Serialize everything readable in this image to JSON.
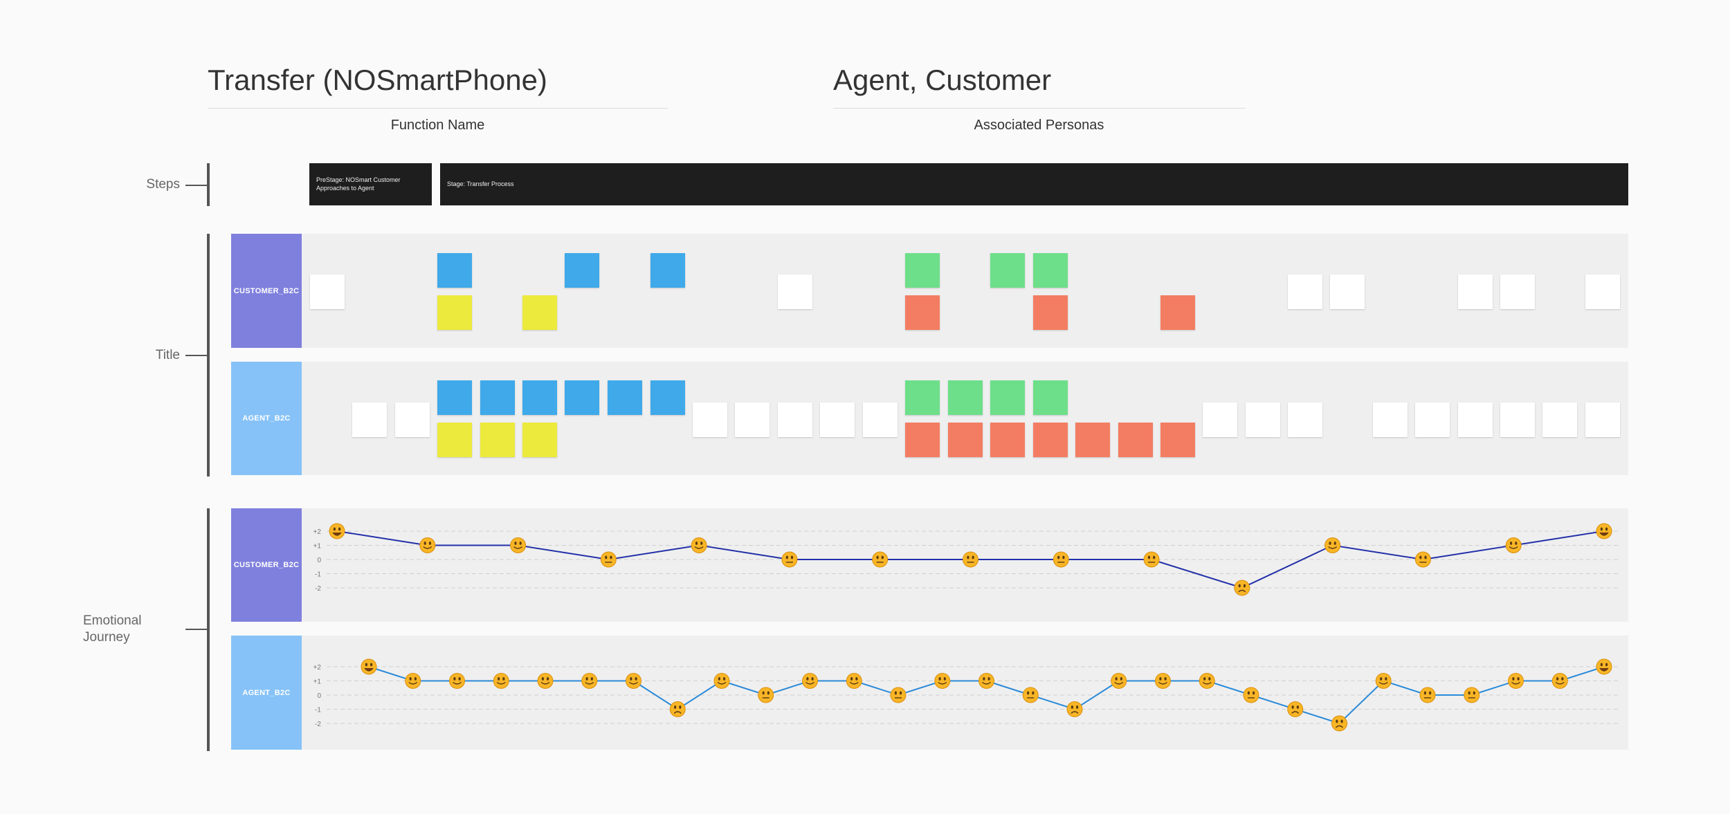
{
  "header": {
    "function_title": "Transfer (NOSmartPhone)",
    "function_label": "Function Name",
    "persona_title": "Agent, Customer",
    "persona_label": "Associated Personas"
  },
  "row_labels": {
    "steps": "Steps",
    "title": "Title",
    "emotional": "Emotional Journey"
  },
  "stages": [
    {
      "label": "PreStage: NOSmart Customer Approaches to Agent"
    },
    {
      "label": "Stage: Transfer Process"
    }
  ],
  "lanes": [
    {
      "label": "CUSTOMER_B2C",
      "color": "#7f80dd"
    },
    {
      "label": "AGENT_B2C",
      "color": "#86c2f7"
    }
  ],
  "colors": {
    "white_note": "#ffffff",
    "blue_note": "#3fa9ea",
    "yellow_note": "#ecea3c",
    "green_note": "#6ddf8a",
    "red_note": "#f37d62",
    "customer_line": "#2230a8",
    "agent_line": "#2a8ad8",
    "stage_bg": "#1e1e1e"
  },
  "emotion_scale": [
    "+2",
    "+1",
    "0",
    "-1",
    "-2"
  ],
  "emotion_icons": {
    "happy": "smiling-face-icon",
    "neutral": "neutral-face-icon",
    "sad": "frowning-face-icon"
  },
  "customer_journey": [
    2,
    1,
    1,
    0,
    1,
    0,
    0,
    0,
    0,
    0,
    -2,
    1,
    0,
    1,
    2
  ],
  "agent_journey": [
    2,
    1,
    1,
    1,
    1,
    1,
    1,
    -1,
    1,
    0,
    1,
    1,
    0,
    1,
    1,
    0,
    -1,
    1,
    1,
    1,
    0,
    -1,
    -2,
    1,
    0,
    0,
    1,
    1,
    2
  ]
}
